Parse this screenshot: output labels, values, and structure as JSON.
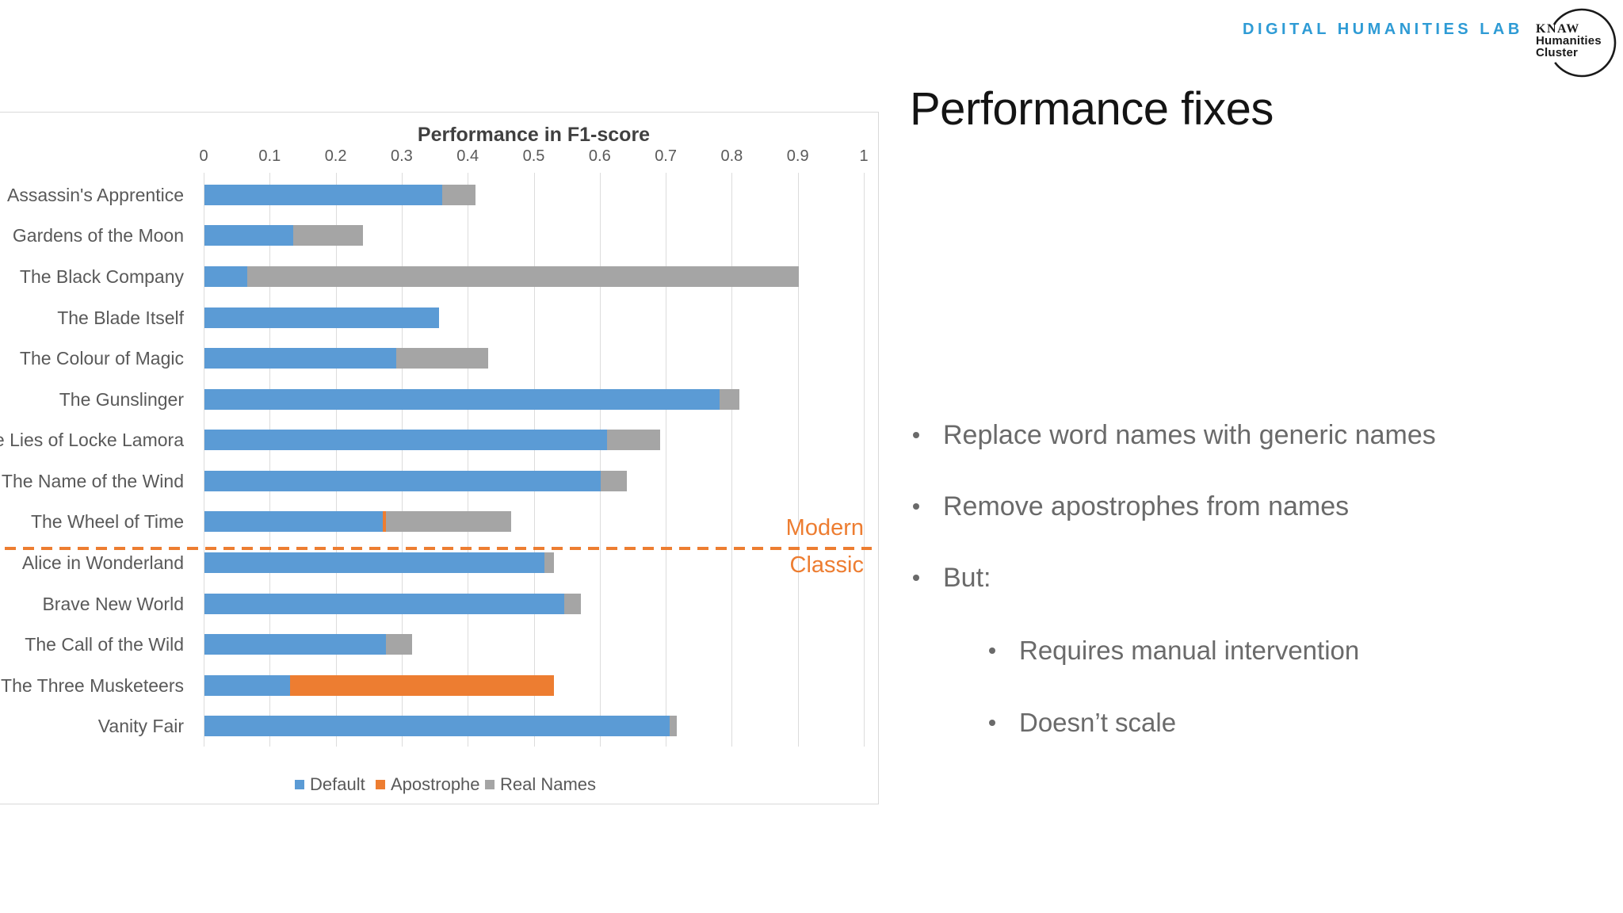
{
  "brand": {
    "wordmark": "DIGITAL HUMANITIES LAB",
    "logo_line1": "KNAW",
    "logo_line2": "Humanities",
    "logo_line3": "Cluster"
  },
  "slide": {
    "title": "Performance fixes",
    "bullets": [
      {
        "text": "Replace word names with generic names",
        "level": 1
      },
      {
        "text": "Remove apostrophes from names",
        "level": 1
      },
      {
        "text": "But:",
        "level": 1
      },
      {
        "text": "Requires manual intervention",
        "level": 2
      },
      {
        "text": "Doesn’t scale",
        "level": 2
      }
    ]
  },
  "chart_data": {
    "type": "bar",
    "orientation": "horizontal",
    "stacked": true,
    "title": "Performance in F1-score",
    "axis_position": "top",
    "xlim": [
      0,
      1
    ],
    "tick_step": 0.1,
    "tick_labels": [
      "0",
      "0.1",
      "0.2",
      "0.3",
      "0.4",
      "0.5",
      "0.6",
      "0.7",
      "0.8",
      "0.9",
      "1"
    ],
    "grid": true,
    "categories": [
      "Assassin's Apprentice",
      "Gardens of the Moon",
      "The Black Company",
      "The Blade Itself",
      "The Colour of Magic",
      "The Gunslinger",
      "The Lies of Locke Lamora",
      "The Name of the Wind",
      "The Wheel of Time",
      "Alice in Wonderland",
      "Brave New World",
      "The Call of the Wild",
      "The Three Musketeers",
      "Vanity Fair"
    ],
    "series": [
      {
        "name": "Default",
        "color": "#5B9BD5",
        "values": [
          0.36,
          0.135,
          0.065,
          0.355,
          0.29,
          0.78,
          0.61,
          0.6,
          0.27,
          0.515,
          0.545,
          0.275,
          0.13,
          0.705
        ]
      },
      {
        "name": "Apostrophe",
        "color": "#ED7D31",
        "values": [
          0,
          0,
          0,
          0,
          0,
          0,
          0,
          0,
          0.005,
          0,
          0,
          0,
          0.4,
          0
        ]
      },
      {
        "name": "Real Names",
        "color": "#A5A5A5",
        "values": [
          0.05,
          0.105,
          0.835,
          0,
          0.14,
          0.03,
          0.08,
          0.04,
          0.19,
          0.015,
          0.025,
          0.04,
          0,
          0.01
        ]
      }
    ],
    "legend": {
      "position": "bottom",
      "entries": [
        "Default",
        "Apostrophe",
        "Real Names"
      ]
    },
    "annotations": {
      "divider_after_category": "The Wheel of Time",
      "label_above_divider": "Modern",
      "label_below_divider": "Classic",
      "divider_color": "#ED7D31"
    }
  },
  "colors": {
    "wordmark_blue": "#2E9BD5",
    "bar_default": "#5B9BD5",
    "bar_apostrophe": "#ED7D31",
    "bar_real_names": "#A5A5A5",
    "chart_text": "#595959",
    "chart_title": "#404040",
    "gridline": "#DCDCDC",
    "frame": "#D9D9D9",
    "body_text": "#6A6A6A",
    "slide_title": "#141414"
  }
}
